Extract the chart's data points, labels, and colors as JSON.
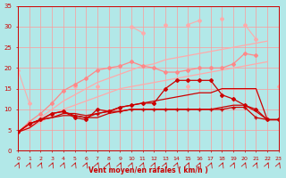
{
  "xlabel": "Vent moyen/en rafales ( km/h )",
  "background_color": "#b2e8e8",
  "grid_color": "#ff9999",
  "x": [
    0,
    1,
    2,
    3,
    4,
    5,
    6,
    7,
    8,
    9,
    10,
    11,
    12,
    13,
    14,
    15,
    16,
    17,
    18,
    19,
    20,
    21,
    22,
    23
  ],
  "ylim": [
    0,
    35
  ],
  "xlim": [
    0,
    23
  ],
  "yticks": [
    0,
    5,
    10,
    15,
    20,
    25,
    30,
    35
  ],
  "series": [
    {
      "label": "light_pink_scattered_low",
      "y": [
        19.5,
        11.5,
        null,
        null,
        null,
        15.5,
        null,
        15.5,
        null,
        null,
        null,
        null,
        null,
        null,
        null,
        15.5,
        null,
        null,
        null,
        null,
        null,
        null,
        null,
        15.5
      ],
      "color": "#ffaaaa",
      "lw": 0.8,
      "marker": "D",
      "ms": 2.0,
      "zorder": 2,
      "connected": false
    },
    {
      "label": "light_pink_top_high",
      "y": [
        null,
        null,
        null,
        null,
        null,
        null,
        null,
        null,
        null,
        null,
        30.0,
        28.5,
        null,
        30.5,
        null,
        30.5,
        31.5,
        null,
        32.0,
        null,
        30.5,
        27.0,
        null,
        null
      ],
      "color": "#ffaaaa",
      "lw": 0.8,
      "marker": "D",
      "ms": 2.0,
      "zorder": 2,
      "connected": false
    },
    {
      "label": "pink_linear_upper",
      "y": [
        4.5,
        6.0,
        8.0,
        10.0,
        12.0,
        13.5,
        15.0,
        16.5,
        17.5,
        18.5,
        19.5,
        20.5,
        21.0,
        22.0,
        22.5,
        23.0,
        23.5,
        24.0,
        24.5,
        25.0,
        25.5,
        26.0,
        26.5,
        null
      ],
      "color": "#ffaaaa",
      "lw": 0.9,
      "marker": null,
      "ms": 0,
      "zorder": 1,
      "connected": true
    },
    {
      "label": "pink_linear_lower",
      "y": [
        4.5,
        5.5,
        7.0,
        8.5,
        10.0,
        11.0,
        12.0,
        13.0,
        14.0,
        15.0,
        15.5,
        16.0,
        16.5,
        17.0,
        17.5,
        18.0,
        18.5,
        19.0,
        19.5,
        20.0,
        20.5,
        21.0,
        21.5,
        null
      ],
      "color": "#ffaaaa",
      "lw": 0.9,
      "marker": null,
      "ms": 0,
      "zorder": 1,
      "connected": true
    },
    {
      "label": "mid_pink_with_markers",
      "y": [
        4.5,
        7.0,
        9.0,
        11.5,
        14.5,
        16.0,
        17.5,
        19.5,
        20.0,
        20.5,
        21.5,
        20.5,
        20.0,
        19.0,
        19.0,
        19.5,
        20.0,
        20.0,
        20.0,
        21.0,
        23.5,
        23.0,
        null,
        null
      ],
      "color": "#ff8888",
      "lw": 0.9,
      "marker": "D",
      "ms": 2.0,
      "zorder": 2,
      "connected": true
    },
    {
      "label": "dark_red_cross_flat",
      "y": [
        4.5,
        6.5,
        7.5,
        9.0,
        9.5,
        8.5,
        8.0,
        9.0,
        9.5,
        9.5,
        10.0,
        10.0,
        10.0,
        10.0,
        10.0,
        10.0,
        10.0,
        10.0,
        10.0,
        10.5,
        10.5,
        8.0,
        7.5,
        7.5
      ],
      "color": "#cc0000",
      "lw": 0.9,
      "marker": "+",
      "ms": 3.0,
      "zorder": 3,
      "connected": true
    },
    {
      "label": "dark_red_diamond_peaked",
      "y": [
        4.5,
        6.5,
        7.5,
        9.0,
        9.5,
        8.0,
        7.5,
        10.0,
        9.5,
        10.5,
        11.0,
        11.5,
        11.5,
        15.0,
        17.0,
        17.0,
        17.0,
        17.0,
        13.5,
        12.5,
        11.0,
        10.0,
        7.5,
        7.5
      ],
      "color": "#cc0000",
      "lw": 0.9,
      "marker": "D",
      "ms": 2.0,
      "zorder": 3,
      "connected": true
    },
    {
      "label": "dark_red_plain_lower",
      "y": [
        4.5,
        5.5,
        7.5,
        8.0,
        8.5,
        8.5,
        8.0,
        8.0,
        9.0,
        9.5,
        10.0,
        10.0,
        10.0,
        10.0,
        10.0,
        10.0,
        10.0,
        10.0,
        10.5,
        11.0,
        11.0,
        9.5,
        7.5,
        7.5
      ],
      "color": "#cc0000",
      "lw": 0.9,
      "marker": null,
      "ms": 0,
      "zorder": 2,
      "connected": true
    },
    {
      "label": "dark_red_plain_upper",
      "y": [
        4.5,
        6.5,
        7.5,
        8.0,
        9.0,
        9.0,
        8.5,
        9.0,
        9.5,
        10.5,
        11.0,
        11.5,
        12.0,
        12.5,
        13.0,
        13.5,
        14.0,
        14.0,
        15.0,
        15.0,
        15.0,
        15.0,
        7.5,
        7.5
      ],
      "color": "#cc0000",
      "lw": 0.9,
      "marker": null,
      "ms": 0,
      "zorder": 2,
      "connected": true
    }
  ],
  "arrow_color": "#cc0000",
  "xtick_fontsize": 4.5,
  "ytick_fontsize": 5.0,
  "xlabel_fontsize": 5.5
}
